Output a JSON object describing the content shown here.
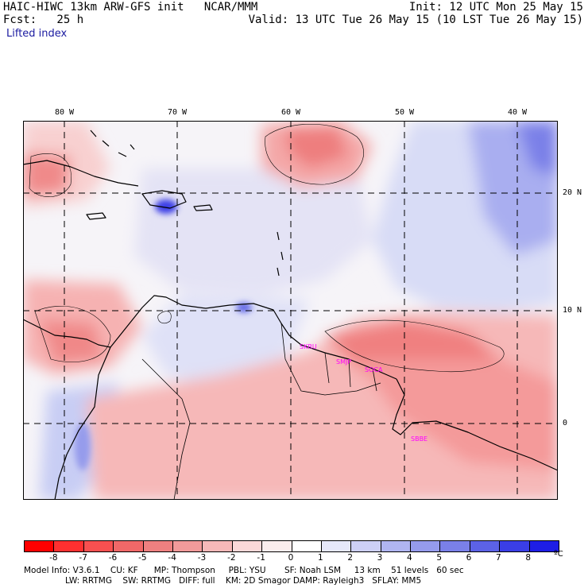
{
  "header": {
    "left_line1": "HAIC-HIWC 13km ARW-GFS init   NCAR/MMM",
    "left_line2": "Fcst:   25 h",
    "right_line1": "Init: 12 UTC Mon 25 May 15",
    "right_line2": "Valid: 13 UTC Tue 26 May 15 (10 LST Tue 26 May 15)",
    "field_name": "Lifted index"
  },
  "map": {
    "lon_labels": [
      "80 W",
      "70 W",
      "60 W",
      "50 W",
      "40 W"
    ],
    "lat_labels": [
      "20 N",
      "10 N",
      "0"
    ],
    "stations": [
      "SKRU",
      "SMJP",
      "SOCA",
      "SBBE"
    ],
    "colors": {
      "neg_strong": "#ff2020",
      "neg_mid": "#f27878",
      "neg_light": "#fbd2d2",
      "neutral": "#f6f4f8",
      "pos_light": "#d8dcf6",
      "pos_mid": "#8e96ec",
      "pos_strong": "#2828e8",
      "coast": "#000000",
      "station": "#ff00ff"
    }
  },
  "colorbar": {
    "levels": [
      "-8",
      "-7",
      "-6",
      "-5",
      "-4",
      "-3",
      "-2",
      "-1",
      "0",
      "1",
      "2",
      "3",
      "4",
      "5",
      "6",
      "7",
      "8"
    ],
    "unit": "ºC",
    "colors": [
      "#ff0000",
      "#ff3030",
      "#f85050",
      "#f06868",
      "#ee8080",
      "#f29a9a",
      "#f6b8b8",
      "#fad8d8",
      "#fbeded",
      "#ffffff",
      "#e6e8fa",
      "#cdd0f6",
      "#b0b5f1",
      "#959bec",
      "#7a80e8",
      "#5c62e6",
      "#3a3ee6",
      "#1e1ee6"
    ]
  },
  "footer": {
    "line1": "Model Info: V3.6.1    CU: KF      MP: Thompson     PBL: YSU       SF: Noah LSM     13 km    51 levels   60 sec",
    "line2": "LW: RRTMG    SW: RRTMG   DIFF: full    KM: 2D Smagor DAMP: Rayleigh3   SFLAY: MM5"
  }
}
